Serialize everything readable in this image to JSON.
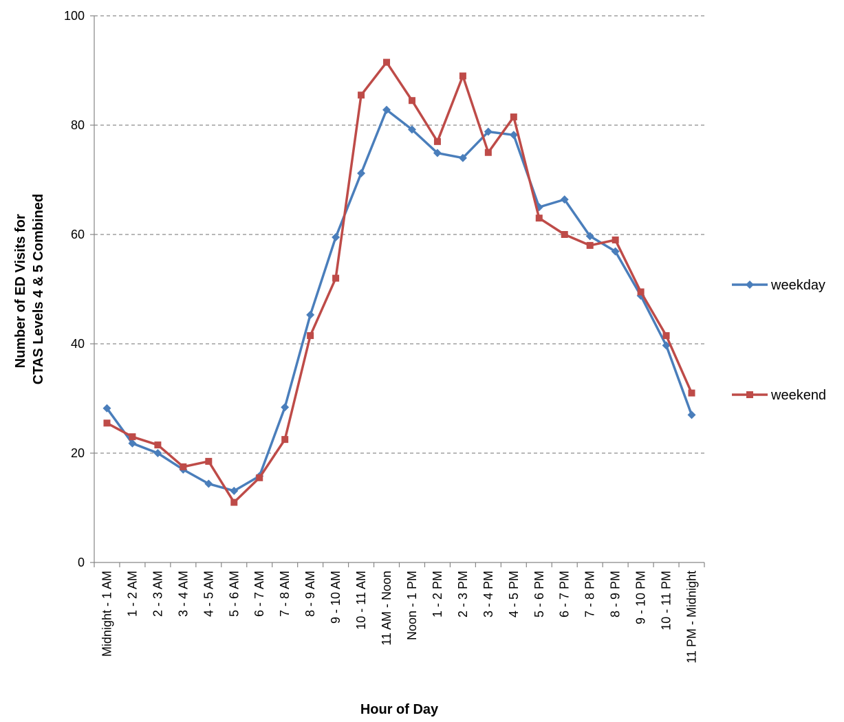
{
  "chart_data": {
    "type": "line",
    "title": "",
    "xlabel": "Hour of Day",
    "ylabel_lines": [
      "Number of ED Visits for",
      "CTAS Levels 4 & 5 Combined"
    ],
    "ylim": [
      0,
      100
    ],
    "yticks": [
      0,
      20,
      40,
      60,
      80,
      100
    ],
    "grid": true,
    "legend_position": "right",
    "categories": [
      "Midnight - 1 AM",
      "1 - 2 AM",
      "2 - 3 AM",
      "3 - 4 AM",
      "4 - 5 AM",
      "5 - 6 AM",
      "6 - 7 AM",
      "7 - 8 AM",
      "8 - 9 AM",
      "9 - 10 AM",
      "10 - 11 AM",
      "11 AM - Noon",
      "Noon - 1 PM",
      "1 - 2 PM",
      "2 - 3 PM",
      "3 - 4 PM",
      "4 - 5 PM",
      "5 - 6 PM",
      "6 - 7 PM",
      "7 - 8 PM",
      "8 - 9 PM",
      "9 - 10 PM",
      "10 - 11 PM",
      "11 PM - Midnight"
    ],
    "series": [
      {
        "name": "weekday",
        "color": "#4a7ebb",
        "marker": "diamond",
        "values": [
          28.2,
          21.8,
          20.0,
          17.0,
          14.4,
          13.1,
          15.8,
          28.4,
          45.3,
          59.5,
          71.2,
          82.8,
          79.2,
          74.9,
          74.0,
          78.8,
          78.2,
          65.0,
          66.4,
          59.7,
          56.9,
          48.8,
          39.7,
          27.0
        ]
      },
      {
        "name": "weekend",
        "color": "#be4b48",
        "marker": "square",
        "values": [
          25.5,
          23.0,
          21.5,
          17.5,
          18.5,
          11.0,
          15.5,
          22.5,
          41.5,
          52.0,
          85.5,
          91.5,
          84.5,
          77.0,
          89.0,
          75.0,
          81.5,
          63.0,
          60.0,
          58.0,
          59.0,
          49.5,
          41.5,
          31.0
        ]
      }
    ]
  }
}
